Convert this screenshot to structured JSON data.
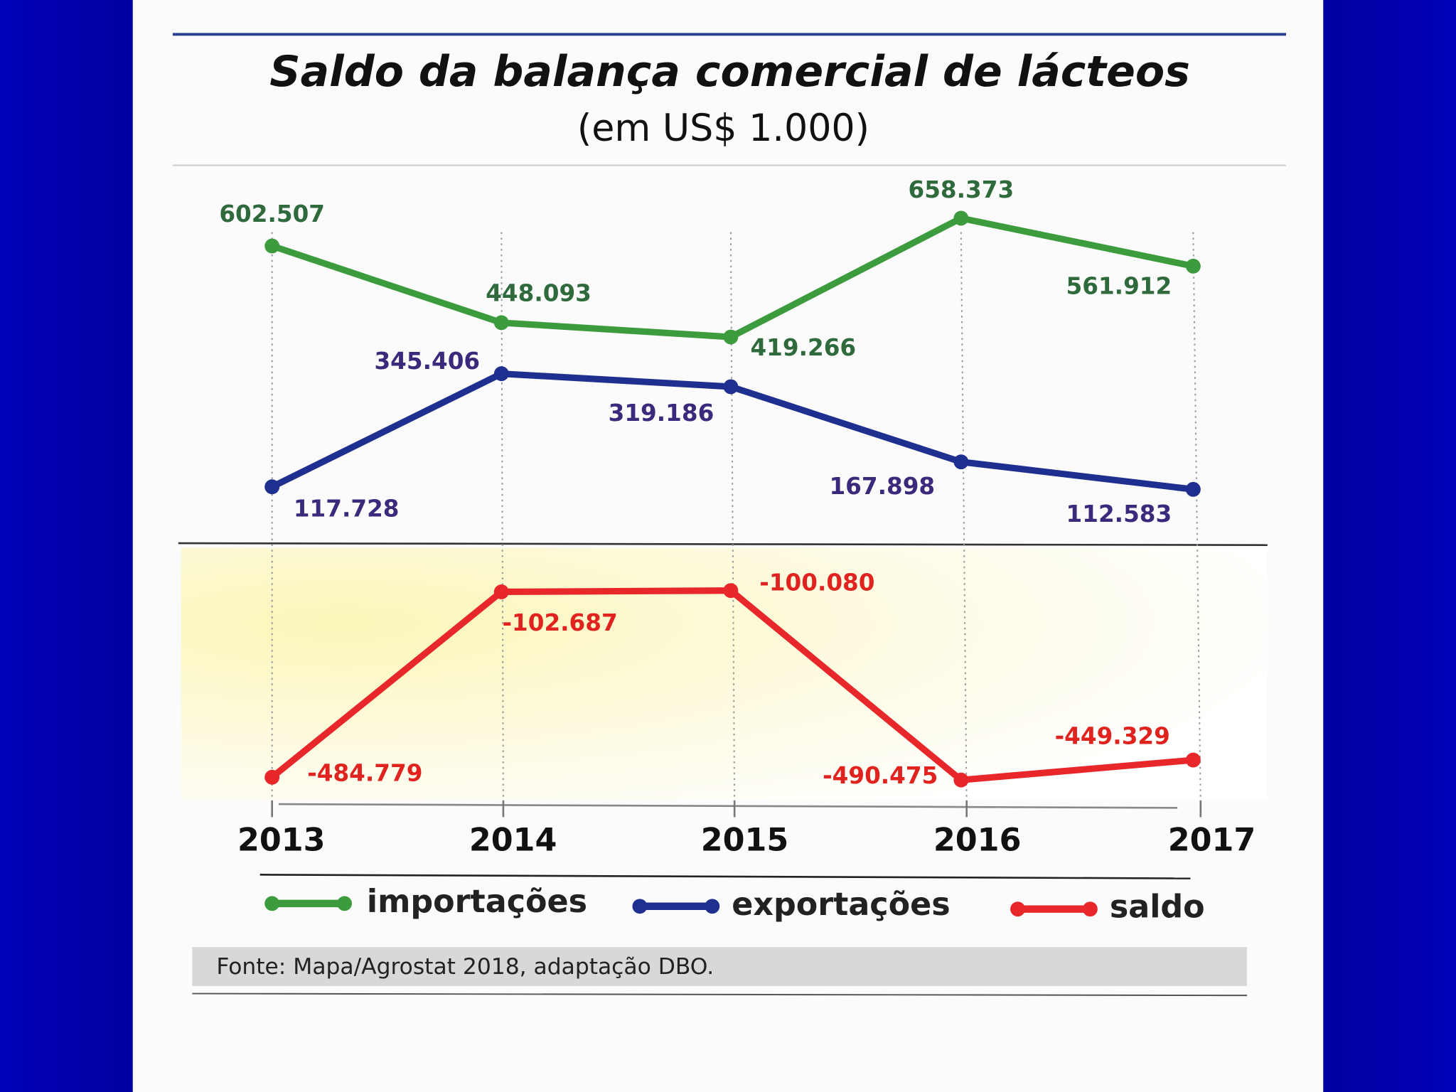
{
  "chart_data": {
    "type": "line",
    "title": "Saldo da balança comercial de lácteos",
    "subtitle": "(em US$ 1.000)",
    "categories": [
      "2013",
      "2014",
      "2015",
      "2016",
      "2017"
    ],
    "series": [
      {
        "name": "importações",
        "color": "#3c9b3c",
        "values": [
          602507,
          448093,
          419266,
          658373,
          561912
        ],
        "value_labels": [
          "602.507",
          "448.093",
          "419.266",
          "658.373",
          "561.912"
        ]
      },
      {
        "name": "exportações",
        "color": "#1e2f90",
        "values": [
          117728,
          345406,
          319186,
          167898,
          112583
        ],
        "value_labels": [
          "117.728",
          "345.406",
          "319.186",
          "167.898",
          "112.583"
        ]
      },
      {
        "name": "saldo",
        "color": "#e8272b",
        "axis": "y2",
        "values": [
          -484779,
          -102687,
          -100080,
          -490475,
          -449329
        ],
        "value_labels": [
          "-484.779",
          "-102.687",
          "-100.080",
          "-490.475",
          "-449.329"
        ]
      }
    ],
    "source": "Fonte: Mapa/Agrostat 2018, adaptação DBO."
  }
}
